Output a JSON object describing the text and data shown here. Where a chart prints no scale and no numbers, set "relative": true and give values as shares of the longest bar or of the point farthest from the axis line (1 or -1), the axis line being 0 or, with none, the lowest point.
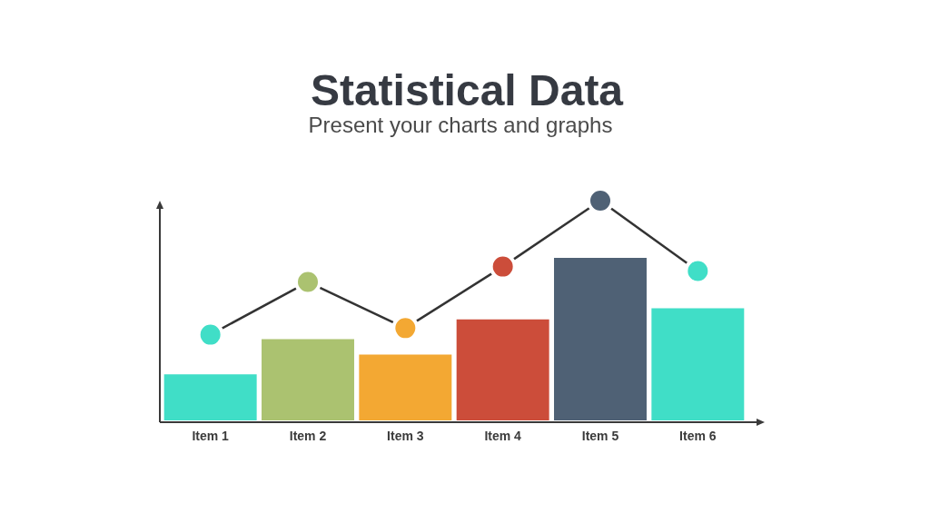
{
  "chart_data": {
    "type": "bar",
    "title": "Statistical Data",
    "subtitle": "Present your charts and graphs",
    "categories": [
      "Item 1",
      "Item 2",
      "Item 3",
      "Item 4",
      "Item 5",
      "Item 6"
    ],
    "relative": true,
    "marker": "circle",
    "series": [
      {
        "colors": [
          "#40dec7",
          "#abc270",
          "#f3a833",
          "#cc4d3a",
          "#4f6175",
          "#40dec7"
        ],
        "values": [
          0.21,
          0.37,
          0.3,
          0.46,
          0.74,
          0.51
        ]
      },
      {
        "type": "line",
        "color": "#333333",
        "colors": [
          "#40dec7",
          "#abc270",
          "#f3a833",
          "#cc4d3a",
          "#4f6175",
          "#40dec7"
        ],
        "values": [
          0.39,
          0.63,
          0.42,
          0.7,
          1,
          0.68
        ]
      }
    ]
  }
}
